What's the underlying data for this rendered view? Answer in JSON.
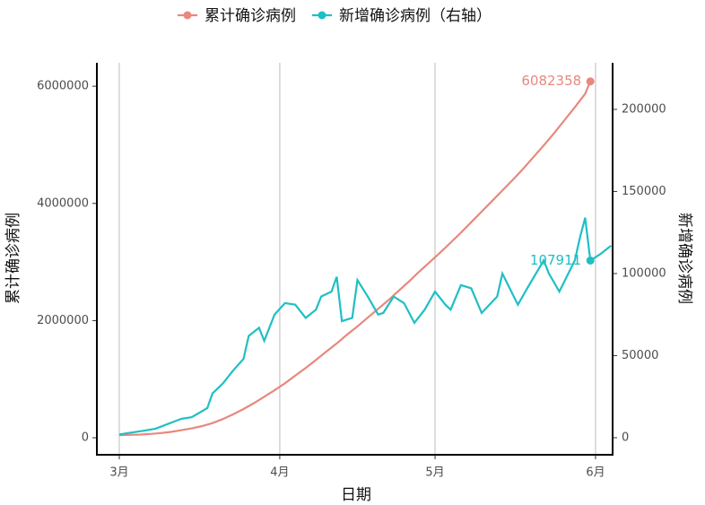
{
  "chart_data": {
    "type": "line",
    "legend_position": "top",
    "x_label": "日期",
    "y_label": "累计确诊病例",
    "y2_label": "新增确诊病例",
    "xlim": [
      -4.33,
      95.3
    ],
    "xticks": [
      {
        "value": 0,
        "label": "3月"
      },
      {
        "value": 31,
        "label": "4月"
      },
      {
        "value": 61,
        "label": "5月"
      },
      {
        "value": 92,
        "label": "6月"
      }
    ],
    "ylim": [
      -290000,
      6400000
    ],
    "yticks": [
      0,
      2000000,
      4000000,
      6000000
    ],
    "y2lim": [
      -10400,
      228400
    ],
    "y2ticks": [
      0,
      50000,
      100000,
      150000,
      200000
    ],
    "grid": true,
    "series": [
      {
        "name": "累计确诊病例",
        "color": "#e8887e",
        "x": [
          0,
          2,
          4,
          6,
          8,
          10,
          12,
          14,
          16,
          18,
          20,
          22,
          24,
          26,
          28,
          30,
          32,
          34,
          36,
          38,
          40,
          42,
          44,
          46,
          48,
          50,
          52,
          54,
          56,
          58,
          60,
          62,
          64,
          66,
          68,
          70,
          72,
          74,
          76,
          78,
          80,
          82,
          84,
          86,
          88,
          90,
          91
        ],
        "values": [
          45000,
          50000,
          55000,
          65000,
          80000,
          100000,
          130000,
          160000,
          200000,
          250000,
          320000,
          400000,
          490000,
          590000,
          700000,
          810000,
          930000,
          1060000,
          1190000,
          1330000,
          1470000,
          1610000,
          1760000,
          1900000,
          2050000,
          2200000,
          2350000,
          2510000,
          2670000,
          2840000,
          3000000,
          3160000,
          3330000,
          3500000,
          3680000,
          3860000,
          4040000,
          4220000,
          4400000,
          4590000,
          4790000,
          4990000,
          5200000,
          5420000,
          5640000,
          5870000,
          6082358
        ]
      },
      {
        "name": "新增确诊病例（右轴）",
        "color": "#1fbfc4",
        "axis": "y2",
        "x": [
          0,
          5,
          7,
          12,
          14,
          17,
          18,
          20,
          22,
          24,
          25,
          27,
          28,
          30,
          32,
          34,
          36,
          38,
          39,
          41,
          42,
          43,
          45,
          46,
          48,
          50,
          51,
          53,
          55,
          57,
          59,
          61,
          63,
          64,
          66,
          68,
          70,
          73,
          74,
          77,
          79,
          82,
          83,
          85,
          88,
          89,
          90,
          91,
          93,
          95
        ],
        "values": [
          2000,
          4400,
          5500,
          11500,
          12500,
          18000,
          27000,
          33000,
          41000,
          48000,
          62000,
          67000,
          59000,
          75000,
          82000,
          81000,
          73000,
          78000,
          86000,
          89000,
          98000,
          71000,
          73000,
          96000,
          86000,
          75000,
          76000,
          86000,
          82000,
          70000,
          78000,
          89000,
          81000,
          78000,
          93000,
          91000,
          76000,
          86000,
          100000,
          81000,
          92000,
          108000,
          100000,
          89000,
          108000,
          122000,
          134000,
          107911,
          112000,
          117000
        ]
      }
    ]
  }
}
